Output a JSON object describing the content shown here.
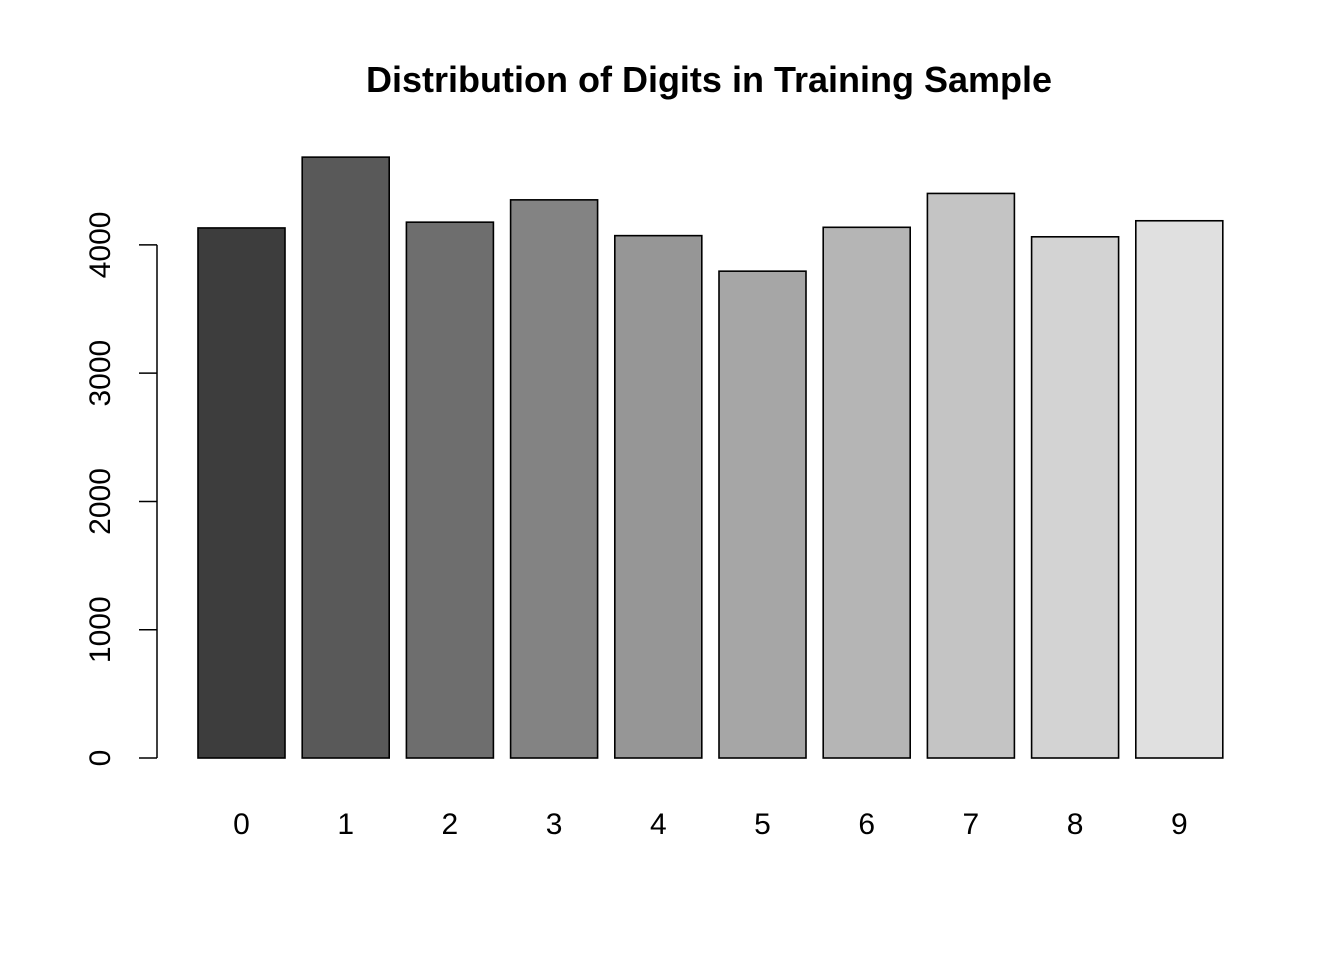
{
  "chart_data": {
    "type": "bar",
    "title": "Distribution of Digits in Training Sample",
    "xlabel": "",
    "ylabel": "",
    "categories": [
      "0",
      "1",
      "2",
      "3",
      "4",
      "5",
      "6",
      "7",
      "8",
      "9"
    ],
    "values": [
      4132,
      4684,
      4177,
      4351,
      4072,
      3795,
      4137,
      4401,
      4063,
      4188
    ],
    "bar_colors": [
      "#3d3d3d",
      "#595959",
      "#6e6e6e",
      "#838383",
      "#969696",
      "#a6a6a6",
      "#b5b5b5",
      "#c4c4c4",
      "#d3d3d3",
      "#e0e0e0"
    ],
    "bar_border_color": "#000000",
    "y_ticks": [
      "0",
      "1000",
      "2000",
      "3000",
      "4000"
    ],
    "ylim": [
      0,
      4684
    ],
    "grid": false,
    "legend": "none"
  }
}
